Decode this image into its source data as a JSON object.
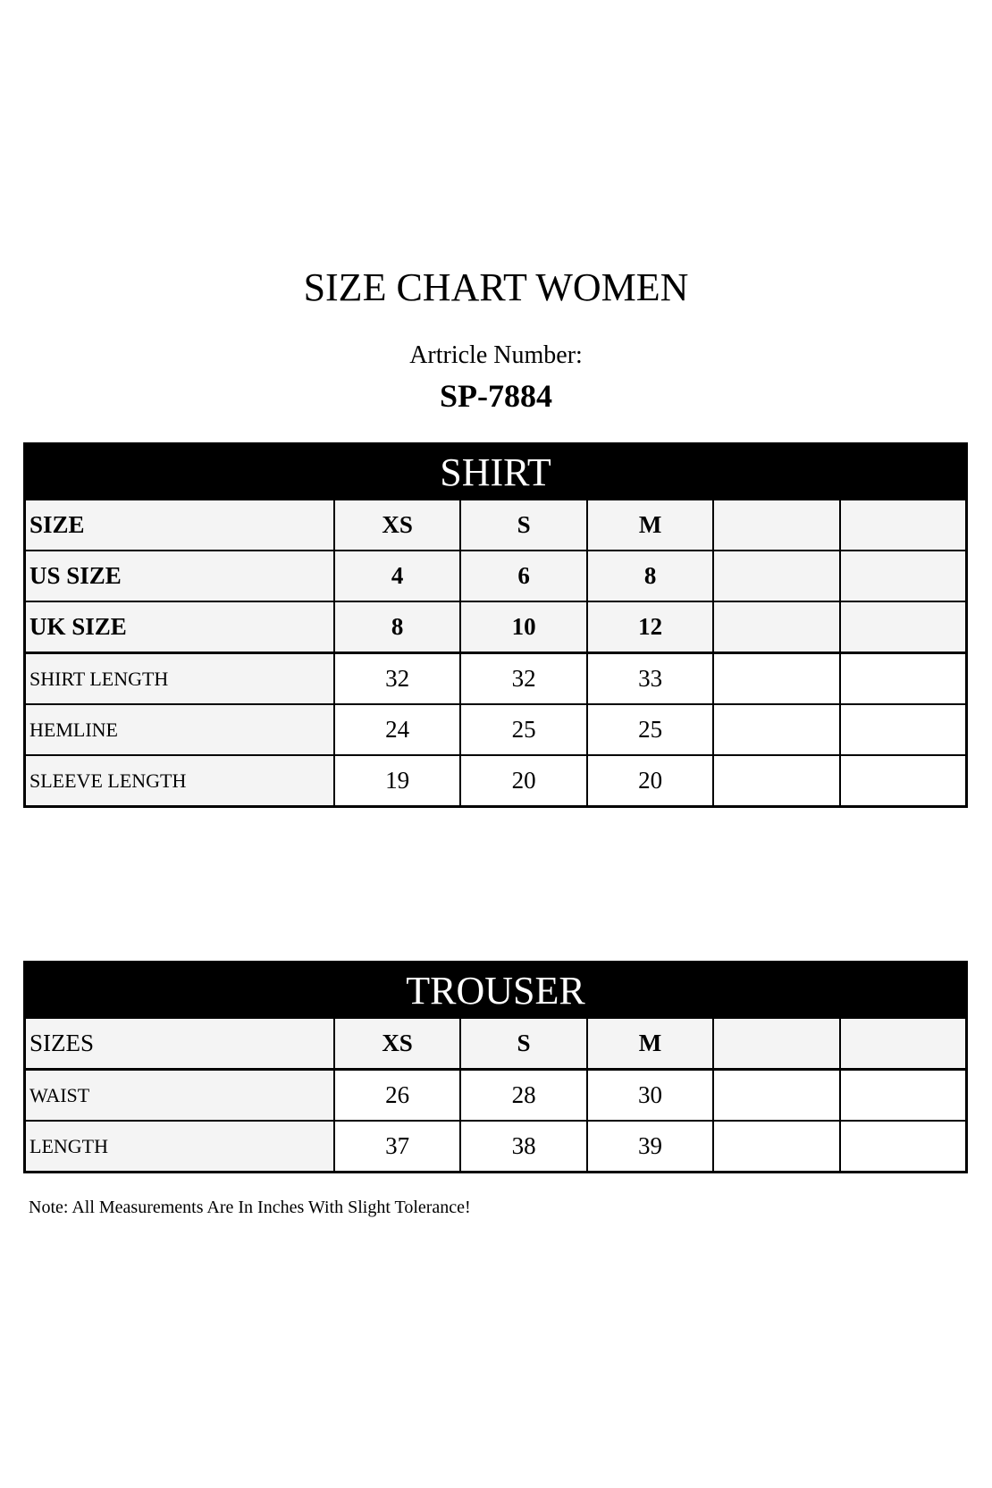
{
  "title": "SIZE CHART WOMEN",
  "article_label": "Artricle Number:",
  "article_number": "SP-7884",
  "shirt": {
    "heading": "SHIRT",
    "rows": [
      {
        "label": "SIZE",
        "values": [
          "XS",
          "S",
          "M",
          "",
          ""
        ]
      },
      {
        "label": "US SIZE",
        "values": [
          "4",
          "6",
          "8",
          "",
          ""
        ]
      },
      {
        "label": "UK SIZE",
        "values": [
          "8",
          "10",
          "12",
          "",
          ""
        ]
      },
      {
        "label": "SHIRT LENGTH",
        "values": [
          "32",
          "32",
          "33",
          "",
          ""
        ]
      },
      {
        "label": "HEMLINE",
        "values": [
          "24",
          "25",
          "25",
          "",
          ""
        ]
      },
      {
        "label": "SLEEVE LENGTH",
        "values": [
          "19",
          "20",
          "20",
          "",
          ""
        ]
      }
    ]
  },
  "trouser": {
    "heading": "TROUSER",
    "rows": [
      {
        "label": "SIZES",
        "values": [
          "XS",
          "S",
          "M",
          "",
          ""
        ]
      },
      {
        "label": "WAIST",
        "values": [
          "26",
          "28",
          "30",
          "",
          ""
        ]
      },
      {
        "label": "LENGTH",
        "values": [
          "37",
          "38",
          "39",
          "",
          ""
        ]
      }
    ]
  },
  "note": "Note: All Measurements Are In Inches With Slight Tolerance!"
}
